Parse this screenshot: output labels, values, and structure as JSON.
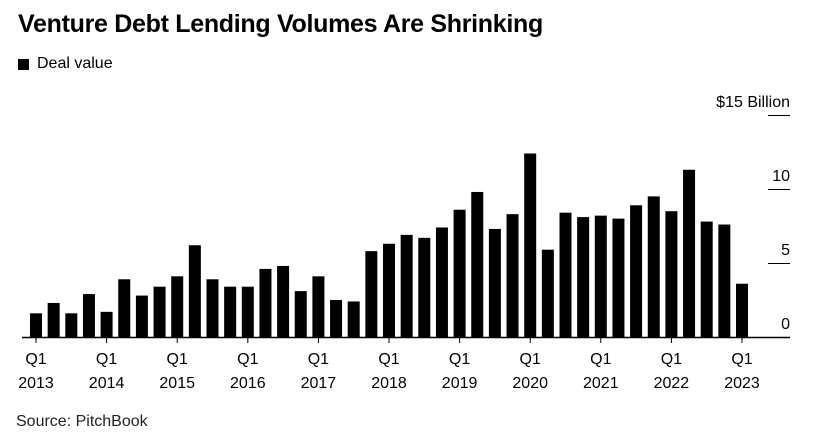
{
  "title": "Venture Debt Lending Volumes Are Shrinking",
  "source": "Source: PitchBook",
  "chart_data": {
    "type": "bar",
    "legend": [
      "Deal value"
    ],
    "legend_position": "top-left",
    "y_unit_label": "$15 Billion",
    "ylim": [
      0,
      15
    ],
    "y_ticks": [
      0,
      5,
      10,
      15
    ],
    "y_tick_labels": [
      "0",
      "5",
      "10",
      "$15 Billion"
    ],
    "grid": false,
    "x_tick_labels": [
      {
        "index": 0,
        "q": "Q1",
        "year": "2013"
      },
      {
        "index": 4,
        "q": "Q1",
        "year": "2014"
      },
      {
        "index": 8,
        "q": "Q1",
        "year": "2015"
      },
      {
        "index": 12,
        "q": "Q1",
        "year": "2016"
      },
      {
        "index": 16,
        "q": "Q1",
        "year": "2017"
      },
      {
        "index": 20,
        "q": "Q1",
        "year": "2018"
      },
      {
        "index": 24,
        "q": "Q1",
        "year": "2019"
      },
      {
        "index": 28,
        "q": "Q1",
        "year": "2020"
      },
      {
        "index": 32,
        "q": "Q1",
        "year": "2021"
      },
      {
        "index": 36,
        "q": "Q1",
        "year": "2022"
      },
      {
        "index": 40,
        "q": "Q1",
        "year": "2023"
      }
    ],
    "series": [
      {
        "name": "Deal value",
        "color": "#000000",
        "values": [
          1.6,
          2.3,
          1.6,
          2.9,
          1.7,
          3.9,
          2.8,
          3.4,
          4.1,
          6.2,
          3.9,
          3.4,
          3.4,
          4.6,
          4.8,
          3.1,
          4.1,
          2.5,
          2.4,
          5.8,
          6.3,
          6.9,
          6.7,
          7.4,
          8.6,
          9.8,
          7.3,
          8.3,
          12.4,
          5.9,
          8.4,
          8.1,
          8.2,
          8.0,
          8.9,
          9.5,
          8.5,
          11.3,
          7.8,
          7.6,
          3.6
        ]
      }
    ]
  }
}
